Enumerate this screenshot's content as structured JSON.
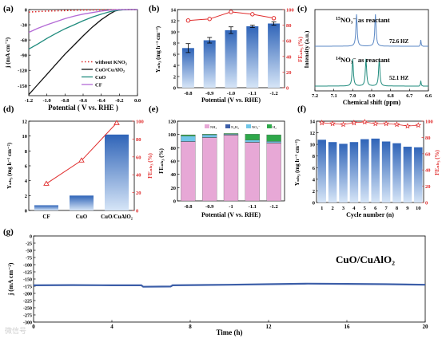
{
  "colors": {
    "black": "#111111",
    "blue": "#3a6fb3",
    "purple": "#b46ad6",
    "red": "#e02b2b",
    "teal": "#1f8b7d",
    "steel": "#5a87c4",
    "pink": "#e7a8d6",
    "green": "#2ea84a",
    "navy": "#3c5ea8",
    "cyan": "#6fc6e8"
  },
  "chart_data": [
    {
      "panel": "(a)",
      "type": "line",
      "xlabel": "Potential  ( V vs. RHE )",
      "ylabel": "j (mA cm⁻²)",
      "xlim": [
        -1.2,
        0.0
      ],
      "ylim": [
        -170,
        0
      ],
      "xticks": [
        "-1.2",
        "-1.0",
        "-0.8",
        "-0.6",
        "-0.4",
        "-0.2",
        "0.0"
      ],
      "yticks": [
        "0",
        "-30",
        "-60",
        "-90",
        "-120",
        "-150"
      ],
      "series": [
        {
          "name": "without KNO₃",
          "style": "dotted",
          "color": "red",
          "x": [
            -1.2,
            -1.1,
            -1.0,
            -0.9,
            -0.8,
            -0.7,
            -0.6,
            -0.5,
            -0.4,
            -0.3,
            -0.2,
            -0.1,
            0.0
          ],
          "y": [
            -5,
            -4,
            -3,
            -2.5,
            -2,
            -1.5,
            -1,
            -0.8,
            -0.6,
            -0.4,
            -0.2,
            -0.1,
            0
          ]
        },
        {
          "name": "CuO/CuAlO₂",
          "style": "solid",
          "color": "black",
          "x": [
            -1.2,
            -1.1,
            -1.0,
            -0.9,
            -0.8,
            -0.7,
            -0.6,
            -0.5,
            -0.4,
            -0.3,
            -0.25,
            -0.2,
            -0.1,
            0.0
          ],
          "y": [
            -168,
            -148,
            -128,
            -108,
            -88,
            -70,
            -52,
            -35,
            -20,
            -8,
            -3,
            -1,
            0,
            0
          ]
        },
        {
          "name": "CuO",
          "style": "solid",
          "color": "teal",
          "x": [
            -1.2,
            -1.1,
            -1.0,
            -0.9,
            -0.8,
            -0.7,
            -0.6,
            -0.5,
            -0.4,
            -0.3,
            -0.2,
            -0.1,
            0.0
          ],
          "y": [
            -78,
            -68,
            -57,
            -47,
            -38,
            -30,
            -22,
            -15,
            -9,
            -4,
            -1,
            0,
            0
          ]
        },
        {
          "name": "CF",
          "style": "solid",
          "color": "purple",
          "x": [
            -1.2,
            -1.1,
            -1.0,
            -0.9,
            -0.8,
            -0.7,
            -0.6,
            -0.5,
            -0.4,
            -0.3,
            -0.2,
            -0.1,
            0.0
          ],
          "y": [
            -45,
            -37,
            -30,
            -24,
            -18,
            -13,
            -9,
            -6,
            -3,
            -1,
            0,
            0,
            0
          ]
        }
      ]
    },
    {
      "panel": "(b)",
      "type": "bar",
      "xlabel": "Potential (V vs. RHE)",
      "ylabel": "Yₙₕ₃ (mg h⁻¹ cm⁻²)",
      "y2label": "FEₙₕ₃ (%)",
      "categories": [
        "-0.8",
        "-0.9",
        "-1.0",
        "-1.1",
        "-1.2"
      ],
      "values": [
        7.1,
        8.5,
        10.3,
        11.0,
        11.5
      ],
      "errors": [
        0.8,
        0.5,
        0.6,
        0.2,
        0.3
      ],
      "fe": [
        86,
        88,
        97,
        94,
        89
      ],
      "ylim": [
        0,
        14
      ],
      "y2lim": [
        0,
        100
      ],
      "yticks": [
        "0",
        "2",
        "4",
        "6",
        "8",
        "10",
        "12",
        "14"
      ],
      "y2ticks": [
        "0",
        "20",
        "40",
        "60",
        "80",
        "100"
      ]
    },
    {
      "panel": "(c)",
      "type": "line",
      "xlabel": "Chemical shift (ppm)",
      "ylabel": "Intensity (a.u.)",
      "xlim": [
        7.2,
        6.6
      ],
      "xticks": [
        "7.2",
        "7.1",
        "7.0",
        "6.9",
        "6.8",
        "6.7",
        "6.6"
      ],
      "series": [
        {
          "name": "15NO3- as reactant",
          "color": "steel",
          "peaks": [
            6.98,
            6.88
          ],
          "note": "72.6 HZ"
        },
        {
          "name": "14NO3- as reactant",
          "color": "teal",
          "peaks": [
            7.0,
            6.93,
            6.86
          ],
          "note": "52.1 HZ"
        }
      ]
    },
    {
      "panel": "(d)",
      "type": "bar",
      "ylabel": "Yₙₕ₃ (mg h⁻¹ cm⁻²)",
      "y2label": "FEₙₕ₃ (%)",
      "categories": [
        "CF",
        "CuO",
        "CuO/CuAlO₂"
      ],
      "values": [
        0.7,
        2.0,
        10.2
      ],
      "fe": [
        30,
        56,
        98
      ],
      "ylim": [
        0,
        12
      ],
      "y2lim": [
        0,
        100
      ],
      "yticks": [
        "0",
        "2",
        "4",
        "6",
        "8",
        "10",
        "12"
      ],
      "y2ticks": [
        "0",
        "20",
        "40",
        "60",
        "80",
        "100"
      ]
    },
    {
      "panel": "(e)",
      "type": "bar",
      "xlabel": "Potential (V vs. RHE)",
      "ylabel": "FEₙₕ₃ (%)",
      "categories": [
        "-0.8",
        "-0.9",
        "-1",
        "-1.1",
        "-1.2"
      ],
      "legend": [
        "NH₃",
        "N₂H₄",
        "NO₂⁻",
        "H₂"
      ],
      "series": [
        {
          "name": "NH₃",
          "values": [
            89,
            95,
            99,
            88,
            87
          ]
        },
        {
          "name": "N₂H₄",
          "values": [
            0.5,
            0.5,
            0.5,
            0.5,
            0.5
          ]
        },
        {
          "name": "NO₂⁻",
          "values": [
            8,
            4,
            1,
            3,
            2
          ]
        },
        {
          "name": "H₂",
          "values": [
            2,
            1,
            1,
            9,
            10
          ]
        }
      ],
      "ylim": [
        0,
        120
      ],
      "yticks": [
        "0",
        "20",
        "40",
        "60",
        "80",
        "100",
        "120"
      ]
    },
    {
      "panel": "(f)",
      "type": "bar",
      "xlabel": "Cycle number (n)",
      "ylabel": "Yₙₕ₃ (mg h⁻¹ cm⁻²)",
      "y2label": "FEₙₕ₃ (%)",
      "categories": [
        "1",
        "2",
        "3",
        "4",
        "5",
        "6",
        "7",
        "8",
        "9",
        "10"
      ],
      "values": [
        10.8,
        10.4,
        10.1,
        10.4,
        10.9,
        11.0,
        10.5,
        10.2,
        9.6,
        9.5
      ],
      "fe": [
        98,
        97,
        96,
        98,
        99,
        97,
        97,
        96,
        94,
        95
      ],
      "ylim": [
        0,
        14
      ],
      "y2lim": [
        0,
        100
      ],
      "yticks": [
        "0",
        "2",
        "4",
        "6",
        "8",
        "10",
        "12",
        "14"
      ],
      "y2ticks": [
        "0",
        "20",
        "40",
        "60",
        "80",
        "100"
      ]
    },
    {
      "panel": "(g)",
      "type": "line",
      "xlabel": "Time (h)",
      "ylabel": "j (mA cm⁻²)",
      "xlim": [
        0,
        20
      ],
      "ylim": [
        -300,
        0
      ],
      "xticks": [
        "0",
        "4",
        "8",
        "12",
        "16",
        "20"
      ],
      "yticks": [
        "0",
        "-25",
        "-50",
        "-75",
        "-100",
        "-125",
        "-150",
        "-175",
        "-200",
        "-225",
        "-250",
        "-275",
        "-300"
      ],
      "series": [
        {
          "name": "CuO/CuAlO₂",
          "color": "navy",
          "x": [
            0,
            2,
            4,
            5.5,
            5.6,
            7,
            7.1,
            10,
            12,
            14,
            16,
            18,
            20
          ],
          "y": [
            -172,
            -171,
            -172,
            -172,
            -177,
            -176,
            -172,
            -170,
            -168,
            -166,
            -167,
            -168,
            -170
          ]
        }
      ]
    }
  ],
  "labels": {
    "a": "(a)",
    "b": "(b)",
    "c": "(c)",
    "d": "(d)",
    "e": "(e)",
    "f": "(f)",
    "g": "(g)",
    "c_top": "NO₃⁻  as reactant",
    "c_top_sup": "15",
    "c_bot": "NO₃⁻  as reactant",
    "c_bot_sup": "14",
    "c_top_hz": "72.6 HZ",
    "c_bot_hz": "52.1 HZ",
    "g_legend": "CuO/CuAlO₂",
    "watermark": "微信号"
  }
}
